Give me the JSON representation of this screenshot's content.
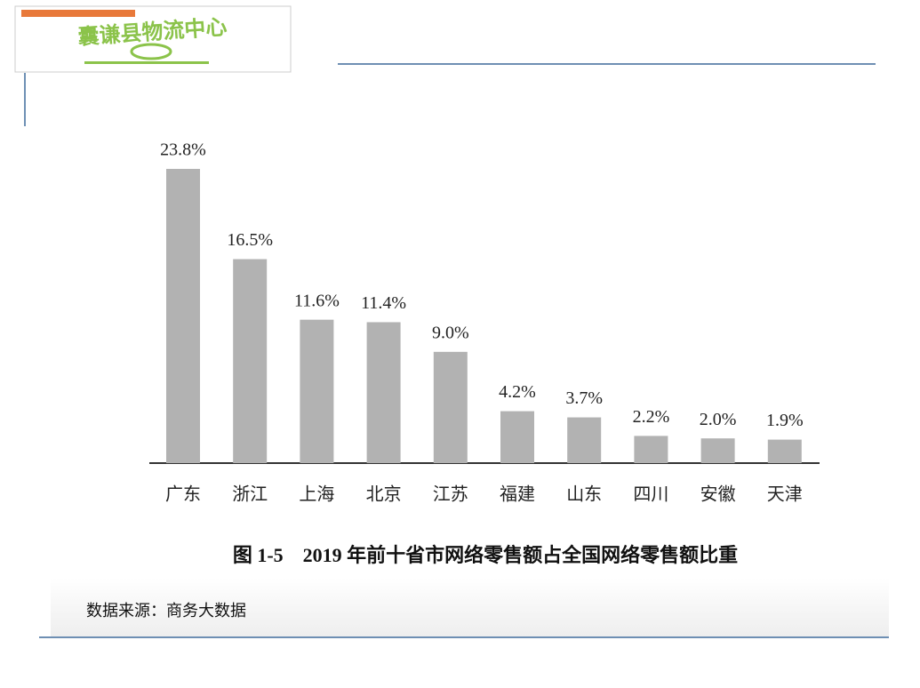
{
  "logo": {
    "text": "囊谦县物流中心"
  },
  "chart_data": {
    "type": "bar",
    "title": "图 1-5　2019 年前十省市网络零售额占全国网络零售额比重",
    "categories": [
      "广东",
      "浙江",
      "上海",
      "北京",
      "江苏",
      "福建",
      "山东",
      "四川",
      "安徽",
      "天津"
    ],
    "values": [
      23.8,
      16.5,
      11.6,
      11.4,
      9.0,
      4.2,
      3.7,
      2.2,
      2.0,
      1.9
    ],
    "value_labels": [
      "23.8%",
      "16.5%",
      "11.6%",
      "11.4%",
      "9.0%",
      "4.2%",
      "3.7%",
      "2.2%",
      "2.0%",
      "1.9%"
    ],
    "color": "#b2b2b2"
  },
  "source": "数据来源：商务大数据"
}
